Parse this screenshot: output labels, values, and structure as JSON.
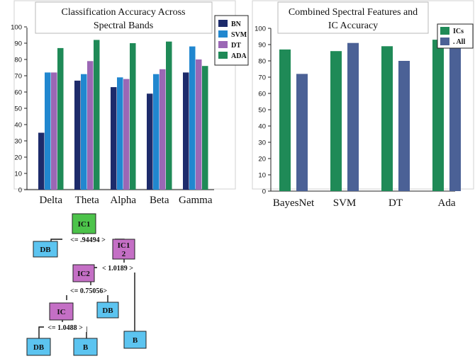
{
  "chart_data": [
    {
      "type": "bar",
      "title_line1": "Classification Accuracy Across",
      "title_line2": "Spectral Bands",
      "xlabel": "",
      "ylabel": "",
      "ylim": [
        0,
        100
      ],
      "yticks": [
        "0",
        "10",
        "20",
        "30",
        "40",
        "50",
        "60",
        "70",
        "80",
        "90",
        "100"
      ],
      "categories": [
        "Delta",
        "Theta",
        "Alpha",
        "Beta",
        "Gamma"
      ],
      "series": [
        {
          "name": "BN",
          "color": "#1d2b6b",
          "values": [
            35,
            67,
            63,
            59,
            72
          ]
        },
        {
          "name": "SVM",
          "color": "#2187cf",
          "values": [
            72,
            71,
            69,
            71,
            88
          ]
        },
        {
          "name": "DT",
          "color": "#9b67b5",
          "values": [
            72,
            79,
            68,
            74,
            80
          ]
        },
        {
          "name": "ADA",
          "color": "#1f8a57",
          "values": [
            87,
            92,
            90,
            91,
            76
          ]
        }
      ],
      "legend": "top-right",
      "grid": false
    },
    {
      "type": "bar",
      "title_line1": "Combined Spectral Features and",
      "title_line2": "IC Accuracy",
      "xlabel": "",
      "ylabel": "",
      "ylim": [
        0,
        100
      ],
      "yticks": [
        "0",
        "10",
        "20",
        "30",
        "40",
        "50",
        "60",
        "70",
        "80",
        "90",
        "100"
      ],
      "categories": [
        "BayesNet",
        "SVM",
        "DT",
        "Ada"
      ],
      "series": [
        {
          "name": "ICs",
          "color": "#1f8a57",
          "values": [
            87,
            86,
            89,
            93
          ]
        },
        {
          "name": ". All",
          "color": "#4b6196",
          "values": [
            72,
            91,
            80,
            88
          ]
        }
      ],
      "legend": "top-right",
      "grid": false
    }
  ],
  "decision_tree": {
    "colors": {
      "root": "#4cc34a",
      "internal": "#c46fc5",
      "leaf": "#5cc4f0"
    },
    "nodes": {
      "root": "IC1",
      "n2_line1": "IC1",
      "n2_line2": "2",
      "n3": "IC2",
      "n4": "IC",
      "db1": "DB",
      "db2": "DB",
      "db3": "DB",
      "b1": "B",
      "b2": "B"
    },
    "edges": {
      "e1": "<= .94494 >",
      "e2": "< 1.0189 >",
      "e3": "<= 0.75056>",
      "e4": "<= 1.0488 >"
    }
  }
}
